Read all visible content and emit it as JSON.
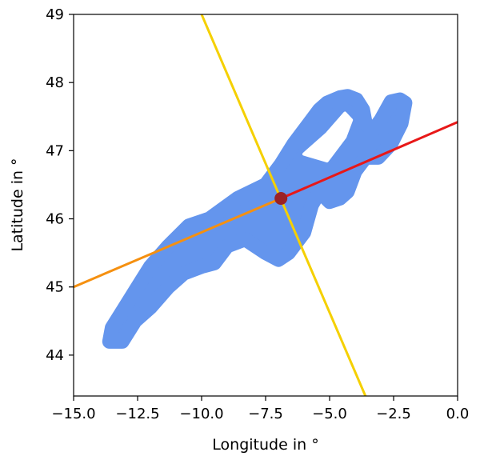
{
  "chart_data": {
    "type": "scatter",
    "xlabel": "Longitude in °",
    "ylabel": "Latitude in °",
    "xlim": [
      -15.0,
      0.0
    ],
    "ylim": [
      43.4,
      49.0
    ],
    "xticks": [
      "−15.0",
      "−12.5",
      "−10.0",
      "−7.5",
      "−5.0",
      "−2.5",
      "0.0"
    ],
    "xtick_values": [
      -15.0,
      -12.5,
      -10.0,
      -7.5,
      -5.0,
      -2.5,
      0.0
    ],
    "yticks": [
      "44",
      "45",
      "46",
      "47",
      "48",
      "49"
    ],
    "ytick_values": [
      44,
      45,
      46,
      47,
      48,
      49
    ],
    "grid": false,
    "colors": {
      "points": "#6495ed",
      "center": "#9b2226",
      "yellow_line": "#f5d000",
      "orange_line": "#f59010",
      "red_line": "#e81818"
    },
    "point_cloud_outline": [
      [
        -13.6,
        44.2
      ],
      [
        -13.5,
        44.4
      ],
      [
        -13.0,
        44.7
      ],
      [
        -12.5,
        45.0
      ],
      [
        -12.0,
        45.3
      ],
      [
        -11.3,
        45.6
      ],
      [
        -10.5,
        45.9
      ],
      [
        -9.7,
        46.0
      ],
      [
        -8.6,
        46.3
      ],
      [
        -7.5,
        46.5
      ],
      [
        -6.9,
        46.8
      ],
      [
        -6.4,
        47.1
      ],
      [
        -5.8,
        47.4
      ],
      [
        -5.4,
        47.6
      ],
      [
        -5.1,
        47.7
      ],
      [
        -4.6,
        47.78
      ],
      [
        -4.3,
        47.8
      ],
      [
        -3.95,
        47.75
      ],
      [
        -3.7,
        47.6
      ],
      [
        -3.6,
        47.4
      ],
      [
        -3.3,
        47.3
      ],
      [
        -3.0,
        47.45
      ],
      [
        -2.6,
        47.72
      ],
      [
        -2.25,
        47.75
      ],
      [
        -2.05,
        47.7
      ],
      [
        -2.2,
        47.4
      ],
      [
        -2.6,
        47.1
      ],
      [
        -3.1,
        46.9
      ],
      [
        -3.6,
        46.9
      ],
      [
        -4.0,
        46.7
      ],
      [
        -4.3,
        46.4
      ],
      [
        -4.6,
        46.3
      ],
      [
        -5.0,
        46.25
      ],
      [
        -5.4,
        46.4
      ],
      [
        -5.7,
        46.2
      ],
      [
        -6.0,
        45.8
      ],
      [
        -6.6,
        45.5
      ],
      [
        -7.0,
        45.4
      ],
      [
        -7.5,
        45.5
      ],
      [
        -8.3,
        45.7
      ],
      [
        -9.0,
        45.6
      ],
      [
        -9.5,
        45.35
      ],
      [
        -10.0,
        45.3
      ],
      [
        -10.7,
        45.2
      ],
      [
        -11.3,
        45.0
      ],
      [
        -12.0,
        44.7
      ],
      [
        -12.6,
        44.5
      ],
      [
        -13.1,
        44.2
      ]
    ],
    "point_cloud_hole": [
      [
        -6.0,
        46.95
      ],
      [
        -5.1,
        47.25
      ],
      [
        -4.4,
        47.55
      ],
      [
        -4.15,
        47.45
      ],
      [
        -4.4,
        47.2
      ],
      [
        -5.1,
        46.85
      ]
    ],
    "center_point": {
      "x": -6.9,
      "y": 46.3
    },
    "lines": [
      {
        "name": "yellow",
        "color": "yellow_line",
        "x": [
          -10.0,
          -3.6
        ],
        "y": [
          49.0,
          43.4
        ]
      },
      {
        "name": "orange",
        "color": "orange_line",
        "x": [
          -15.0,
          -6.9
        ],
        "y": [
          45.0,
          46.3
        ]
      },
      {
        "name": "red",
        "color": "red_line",
        "x": [
          -6.9,
          0.0
        ],
        "y": [
          46.3,
          47.42
        ]
      }
    ]
  }
}
